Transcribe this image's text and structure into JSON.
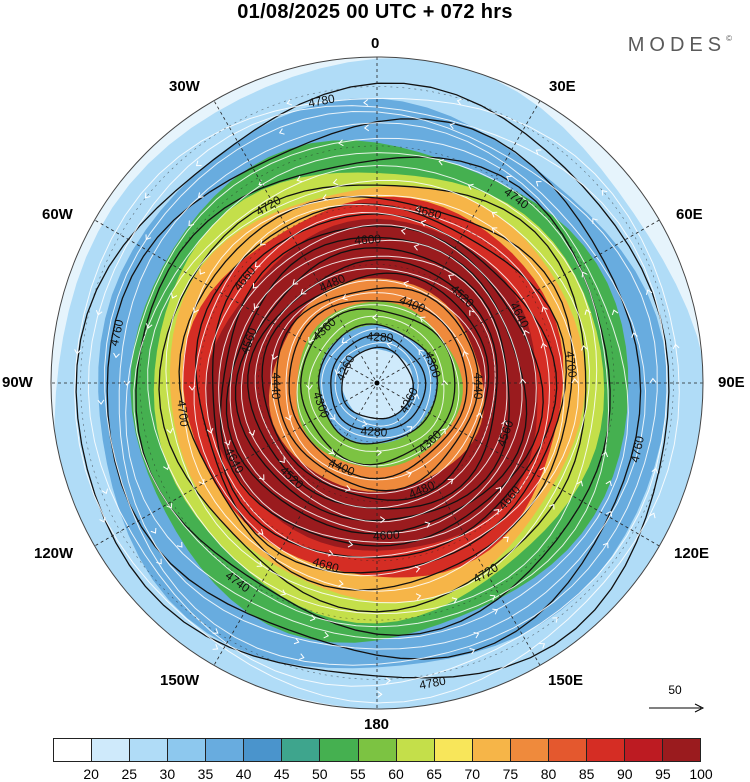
{
  "header": {
    "title": "01/08/2025  00 UTC  + 072 hrs",
    "brand": "MODES",
    "brand_mark": "©"
  },
  "longitude_labels": {
    "n0": "0",
    "n30e": "30E",
    "n60e": "60E",
    "n90e": "90E",
    "n120e": "120E",
    "n150e": "150E",
    "n180": "180",
    "n150w": "150W",
    "n120w": "120W",
    "n90w": "90W",
    "n60w": "60W",
    "n30w": "30W"
  },
  "reference_vector": {
    "label": "50"
  },
  "colors": {
    "contour": "#111111",
    "streamline": "#ffffff",
    "grid": "#222222"
  },
  "colorbar": {
    "labels": [
      "20",
      "25",
      "30",
      "35",
      "40",
      "45",
      "50",
      "55",
      "60",
      "65",
      "70",
      "75",
      "80",
      "85",
      "90",
      "95",
      "100"
    ],
    "colors": [
      "#ffffff",
      "#cfeafb",
      "#b0dcf7",
      "#8dc8ee",
      "#68acdf",
      "#4a94cc",
      "#3ea58d",
      "#45b050",
      "#7cc342",
      "#c4df4a",
      "#f8e65a",
      "#f6b548",
      "#ef8a3c",
      "#e4582e",
      "#d52d24",
      "#bd1b22",
      "#9a1b1e"
    ]
  },
  "chart_data": {
    "type": "heatmap",
    "title": "01/08/2025  00 UTC  + 072 hrs",
    "projection": "polar-stereographic-south",
    "wind_speed_bands": [
      {
        "min_lat": -90,
        "max_lat": -84,
        "value": 20
      },
      {
        "min_lat": -84,
        "max_lat": -80,
        "value": 35
      },
      {
        "min_lat": -80,
        "max_lat": -76,
        "value": 55
      },
      {
        "min_lat": -76,
        "max_lat": -72,
        "value": 75
      },
      {
        "min_lat": -72,
        "max_lat": -62,
        "value": 95
      },
      {
        "min_lat": -62,
        "max_lat": -58,
        "value": 85
      },
      {
        "min_lat": -58,
        "max_lat": -55,
        "value": 72
      },
      {
        "min_lat": -55,
        "max_lat": -52,
        "value": 60
      },
      {
        "min_lat": -52,
        "max_lat": -48,
        "value": 50
      },
      {
        "min_lat": -48,
        "max_lat": -42,
        "value": 38
      },
      {
        "min_lat": -42,
        "max_lat": -35,
        "value": 28
      }
    ],
    "height_contours": [
      {
        "value": 4260,
        "label": "4260",
        "lat": -84
      },
      {
        "value": 4280,
        "label": "4280",
        "lat": -82
      },
      {
        "value": 4300,
        "label": "4300",
        "lat": -80
      },
      {
        "value": 4360,
        "label": "4360",
        "lat": -77
      },
      {
        "value": 4400,
        "label": "4400",
        "lat": -75
      },
      {
        "value": 4440,
        "label": "4440",
        "lat": -73
      },
      {
        "value": 4480,
        "label": "4480",
        "lat": -71
      },
      {
        "value": 4520,
        "label": "4520",
        "lat": -69
      },
      {
        "value": 4560,
        "label": "4560",
        "lat": -67
      },
      {
        "value": 4600,
        "label": "4600",
        "lat": -65
      },
      {
        "value": 4640,
        "label": "4640",
        "lat": -63
      },
      {
        "value": 4660,
        "label": "4660",
        "lat": -61
      },
      {
        "value": 4680,
        "label": "4680",
        "lat": -59
      },
      {
        "value": 4700,
        "label": "4700",
        "lat": -57
      },
      {
        "value": 4720,
        "label": "4720",
        "lat": -54
      },
      {
        "value": 4740,
        "label": "4740",
        "lat": -50
      },
      {
        "value": 4760,
        "label": "4760",
        "lat": -45
      },
      {
        "value": 4780,
        "label": "4780",
        "lat": -40
      }
    ],
    "colorbar_ticks": [
      20,
      25,
      30,
      35,
      40,
      45,
      50,
      55,
      60,
      65,
      70,
      75,
      80,
      85,
      90,
      95,
      100
    ]
  }
}
